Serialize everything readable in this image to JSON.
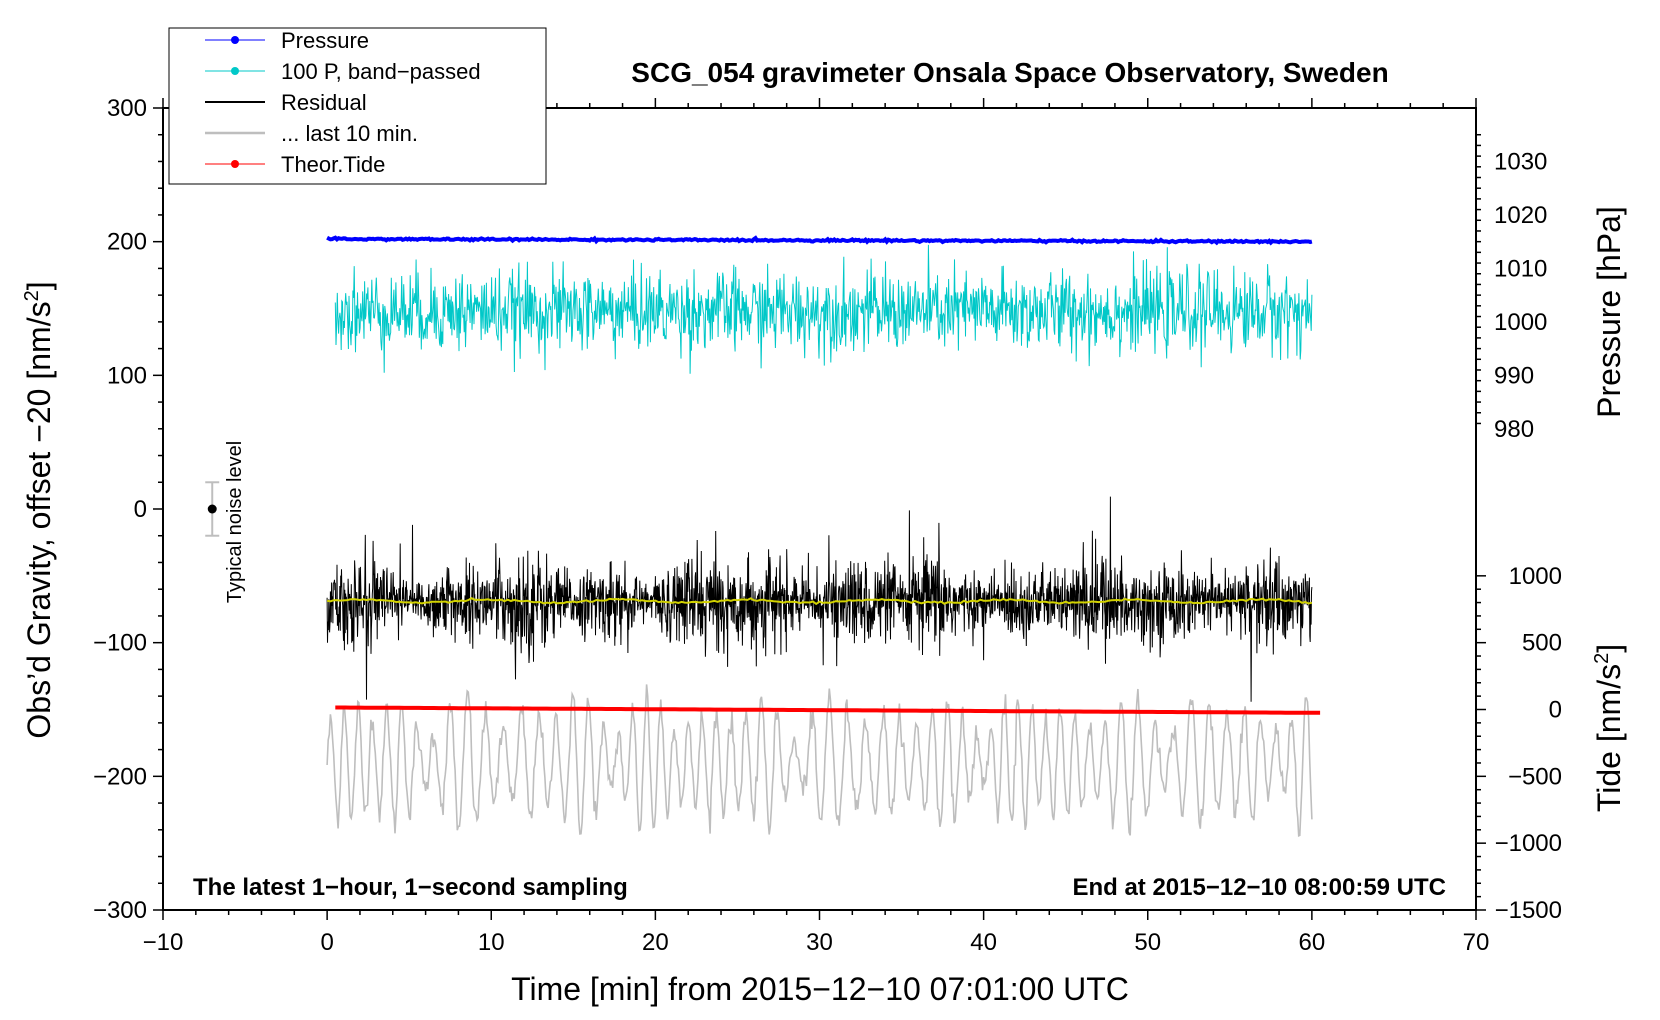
{
  "chart_data": {
    "type": "line",
    "title": "SCG_054 gravimeter Onsala Space Observatory, Sweden",
    "xlabel": "Time [min] from 2015−12−10 07:01:00 UTC",
    "ylabel_left_main": "Obs’d Gravity, offset −20 [nm/s",
    "ylabel_left_sup": "2",
    "ylabel_left_close": "]",
    "ylabel_right_top": "Pressure [hPa]",
    "ylabel_right_bottom_main": "Tide [nm/s",
    "ylabel_right_bottom_sup": "2",
    "ylabel_right_bottom_close": "]",
    "xlim": [
      -10,
      70
    ],
    "ylim": [
      -300,
      300
    ],
    "x_ticks": [
      -10,
      0,
      10,
      20,
      30,
      40,
      50,
      60,
      70
    ],
    "x_tick_labels": [
      "−10",
      "0",
      "10",
      "20",
      "30",
      "40",
      "50",
      "60",
      "70"
    ],
    "y_ticks": [
      300,
      200,
      100,
      0,
      -100,
      -200,
      -300
    ],
    "y_tick_labels": [
      "300",
      "200",
      "100",
      "0",
      "−100",
      "−200",
      "−300"
    ],
    "pressure_axis": {
      "ticks": [
        1030,
        1020,
        1010,
        1000,
        990,
        980
      ],
      "tick_labels": [
        "1030",
        "1020",
        "1010",
        "1000",
        "990",
        "980"
      ],
      "calibration": {
        "value_at_gravity_100": 990,
        "value_at_gravity_200": 1015
      }
    },
    "tide_axis": {
      "ticks": [
        1000,
        500,
        0,
        -500,
        -1000,
        -1500
      ],
      "tick_labels": [
        "1000",
        "500",
        "0",
        "−500",
        "−1000",
        "−1500"
      ],
      "calibration": {
        "value_at_gravity_minus300": -1500,
        "value_at_gravity_minus100": 500
      }
    },
    "legend": [
      {
        "label": "Pressure",
        "color": "#0000ff",
        "marker": true
      },
      {
        "label": "100 P, band−passed",
        "color": "#00c8c8",
        "marker": true
      },
      {
        "label": "Residual",
        "color": "#000000",
        "marker": false
      },
      {
        "label": "... last 10 min.",
        "color": "#bebebe",
        "marker": false
      },
      {
        "label": "Theor.Tide",
        "color": "#ff0000",
        "marker": true
      }
    ],
    "series": [
      {
        "name": "Pressure",
        "color": "#0000ff",
        "x": [
          0,
          60
        ],
        "pressure_hPa": [
          1015.5,
          1015.0
        ],
        "noise": 0.3
      },
      {
        "name": "100 P, band−passed",
        "color": "#00c8c8",
        "x": [
          0.5,
          60
        ],
        "gravity_center": 148,
        "amplitude": 25
      },
      {
        "name": "Residual",
        "color": "#000000",
        "x": [
          0,
          60
        ],
        "gravity_center": -70,
        "amplitude": 32
      },
      {
        "name": "Residual smoothed",
        "color": "#d2d200",
        "x": [
          0,
          60
        ],
        "gravity_center": -69,
        "amplitude": 1.2
      },
      {
        "name": "... last 10 min.",
        "color": "#bebebe",
        "x": [
          0,
          60
        ],
        "gravity_center": -190,
        "amplitude": 40
      },
      {
        "name": "Theor.Tide",
        "color": "#ff0000",
        "x": [
          0.5,
          60.5
        ],
        "tide_nm_s2": [
          15,
          -25
        ]
      }
    ],
    "noise_level": {
      "label": "Typical noise level",
      "x": -7,
      "y": 0,
      "error": 20
    },
    "annotation_left": "The latest 1−hour, 1−second sampling",
    "annotation_right": "End at 2015−12−10 08:00:59 UTC"
  },
  "colors": {
    "pressure": "#0000ff",
    "bandpassed": "#00c8c8",
    "residual": "#000000",
    "smoothed": "#d2d200",
    "last10": "#bebebe",
    "tide": "#ff0000",
    "noise_bar": "#bebebe"
  }
}
